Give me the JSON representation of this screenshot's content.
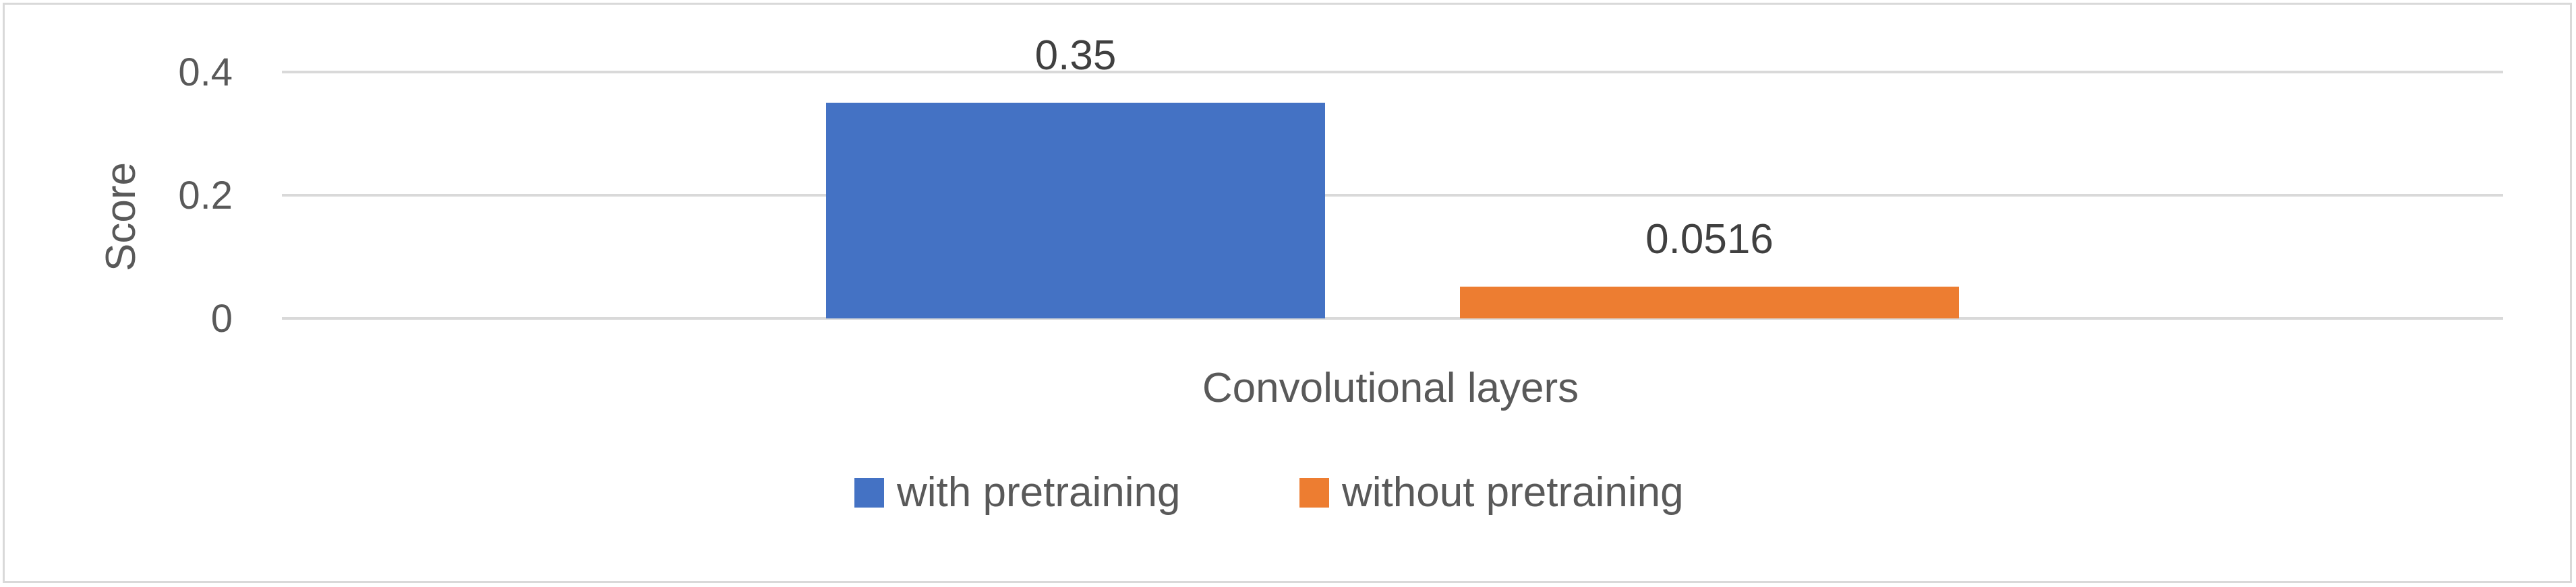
{
  "chart_data": {
    "type": "bar",
    "categories": [
      "Convolutional layers"
    ],
    "series": [
      {
        "name": "with pretraining",
        "values": [
          0.35
        ],
        "color": "#4472c4",
        "label": "0.35"
      },
      {
        "name": "without pretraining",
        "values": [
          0.0516
        ],
        "color": "#ed7d31",
        "label": "0.0516"
      }
    ],
    "ylabel": "Score",
    "ylim": [
      0,
      0.4
    ],
    "yticks": [
      0,
      0.2,
      0.4
    ],
    "ytick_labels": [
      "0",
      "0.2",
      "0.4"
    ],
    "grid": true,
    "gridline_color": "#d9d9d9",
    "legend_position": "bottom"
  }
}
